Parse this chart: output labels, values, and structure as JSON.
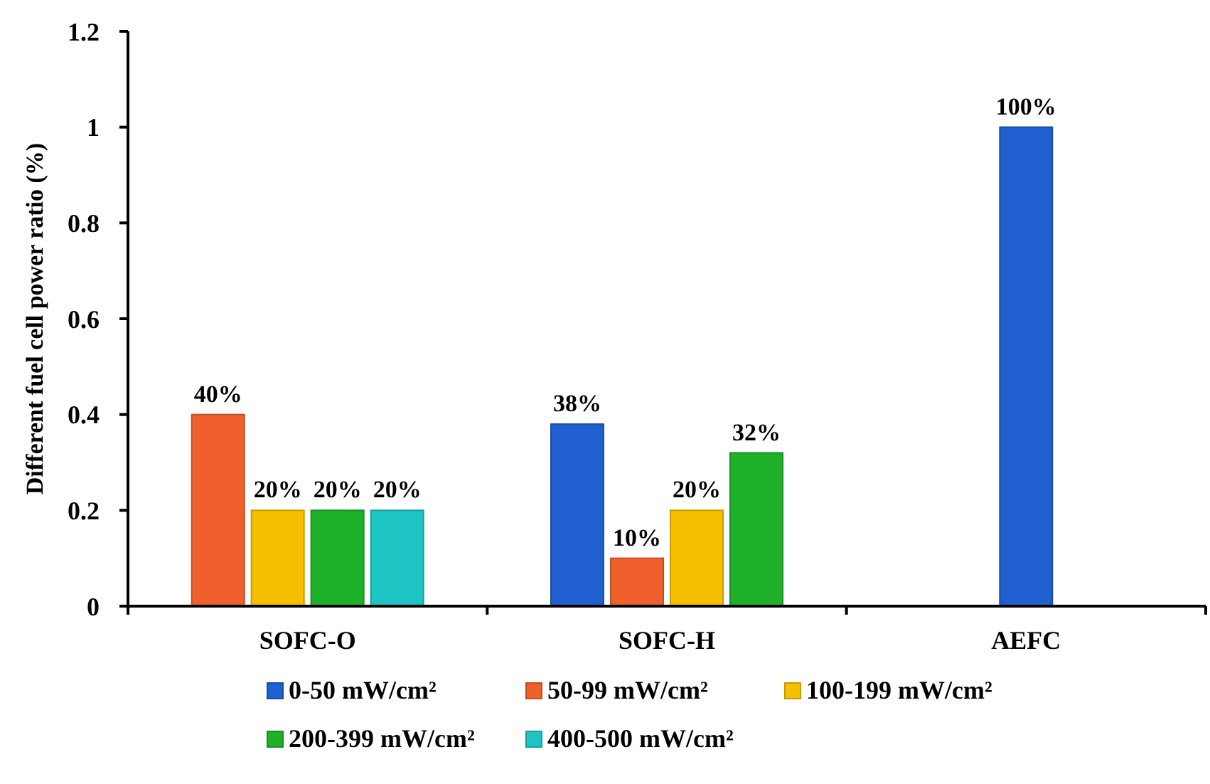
{
  "chart_data": {
    "type": "bar",
    "ylabel": "Different fuel cell power ratio (%)",
    "categories": [
      "SOFC-O",
      "SOFC-H",
      "AEFC"
    ],
    "series": [
      {
        "name": "0-50 mW/cm²",
        "color": "#1f5fd0",
        "values": [
          null,
          0.38,
          1
        ],
        "value_labels": [
          null,
          "38%",
          "100%"
        ]
      },
      {
        "name": "50-99 mW/cm²",
        "color": "#f0602c",
        "values": [
          0.4,
          0.1,
          null
        ],
        "value_labels": [
          "40%",
          "10%",
          null
        ]
      },
      {
        "name": "100-199 mW/cm²",
        "color": "#f5c000",
        "values": [
          0.2,
          0.2,
          null
        ],
        "value_labels": [
          "20%",
          "20%",
          null
        ]
      },
      {
        "name": "200-399 mW/cm²",
        "color": "#1fb02a",
        "values": [
          0.2,
          0.32,
          null
        ],
        "value_labels": [
          "20%",
          "32%",
          null
        ]
      },
      {
        "name": "400-500 mW/cm²",
        "color": "#1fc4c4",
        "values": [
          0.2,
          null,
          null
        ],
        "value_labels": [
          "20%",
          null,
          null
        ]
      }
    ],
    "ylim": [
      0,
      1.2
    ],
    "yticks": [
      0,
      0.2,
      0.4,
      0.6,
      0.8,
      1,
      1.2
    ],
    "legend": "bottom",
    "grid": false
  }
}
